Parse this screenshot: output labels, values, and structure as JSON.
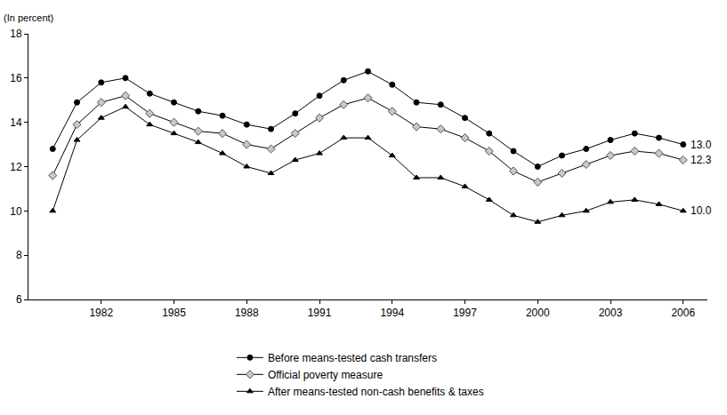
{
  "chart_data": {
    "type": "line",
    "ylabel": "(In percent)",
    "x": [
      1980,
      1981,
      1982,
      1983,
      1984,
      1985,
      1986,
      1987,
      1988,
      1989,
      1990,
      1991,
      1992,
      1993,
      1994,
      1995,
      1996,
      1997,
      1998,
      1999,
      2000,
      2001,
      2002,
      2003,
      2004,
      2005,
      2006
    ],
    "series": [
      {
        "name": "Before means-tested cash transfers",
        "color": "#000000",
        "marker": "circle",
        "values": [
          12.8,
          14.9,
          15.8,
          16.0,
          15.3,
          14.9,
          14.5,
          14.3,
          13.9,
          13.7,
          14.4,
          15.2,
          15.9,
          16.3,
          15.7,
          14.9,
          14.8,
          14.2,
          13.5,
          12.7,
          12.0,
          12.5,
          12.8,
          13.2,
          13.5,
          13.3,
          13.0
        ]
      },
      {
        "name": "Official poverty measure",
        "color": "#c8c8c8",
        "marker": "diamond",
        "values": [
          11.6,
          13.9,
          14.9,
          15.2,
          14.4,
          14.0,
          13.6,
          13.5,
          13.0,
          12.8,
          13.5,
          14.2,
          14.8,
          15.1,
          14.5,
          13.8,
          13.7,
          13.3,
          12.7,
          11.8,
          11.3,
          11.7,
          12.1,
          12.5,
          12.7,
          12.6,
          12.3
        ]
      },
      {
        "name": "After means-tested non-cash benefits & taxes",
        "color": "#000000",
        "marker": "triangle-up",
        "values": [
          10.0,
          13.2,
          14.2,
          14.7,
          13.9,
          13.5,
          13.1,
          12.6,
          12.0,
          11.7,
          12.3,
          12.6,
          13.3,
          13.3,
          12.5,
          11.5,
          11.5,
          11.1,
          10.5,
          9.8,
          9.5,
          9.8,
          10.0,
          10.4,
          10.5,
          10.3,
          10.0
        ]
      }
    ],
    "annotations": [
      {
        "text": "13.0",
        "x": 2006,
        "y": 13.0
      },
      {
        "text": "12.3",
        "x": 2006,
        "y": 12.3
      },
      {
        "text": "10.0",
        "x": 2006,
        "y": 10.0
      }
    ],
    "xlim": [
      1979,
      2007
    ],
    "xticks": [
      1982,
      1985,
      1988,
      1991,
      1994,
      1997,
      2000,
      2003,
      2006
    ],
    "ylim": [
      6,
      18
    ],
    "yticks": [
      6,
      8,
      10,
      12,
      14,
      16,
      18
    ],
    "grid": false,
    "legend": "bottom"
  }
}
